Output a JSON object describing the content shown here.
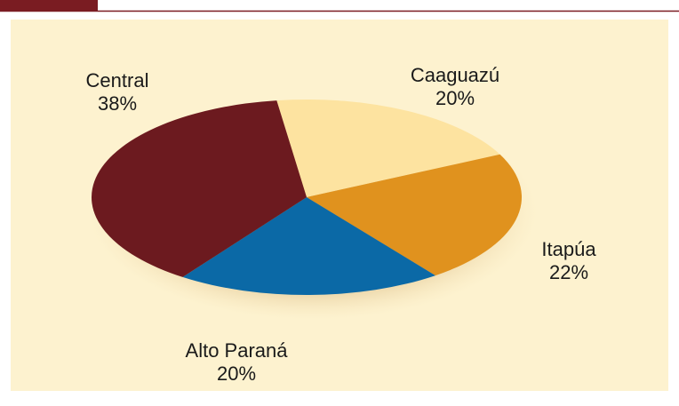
{
  "chart_data": {
    "type": "pie",
    "categories": [
      "Caaguazú",
      "Itapúa",
      "Alto Paraná",
      "Central"
    ],
    "values": [
      20,
      22,
      20,
      38
    ],
    "value_labels": [
      "20%",
      "22%",
      "20%",
      "38%"
    ],
    "colors": [
      "#fde3a0",
      "#e0921e",
      "#0b69a6",
      "#6c1a1f"
    ]
  }
}
